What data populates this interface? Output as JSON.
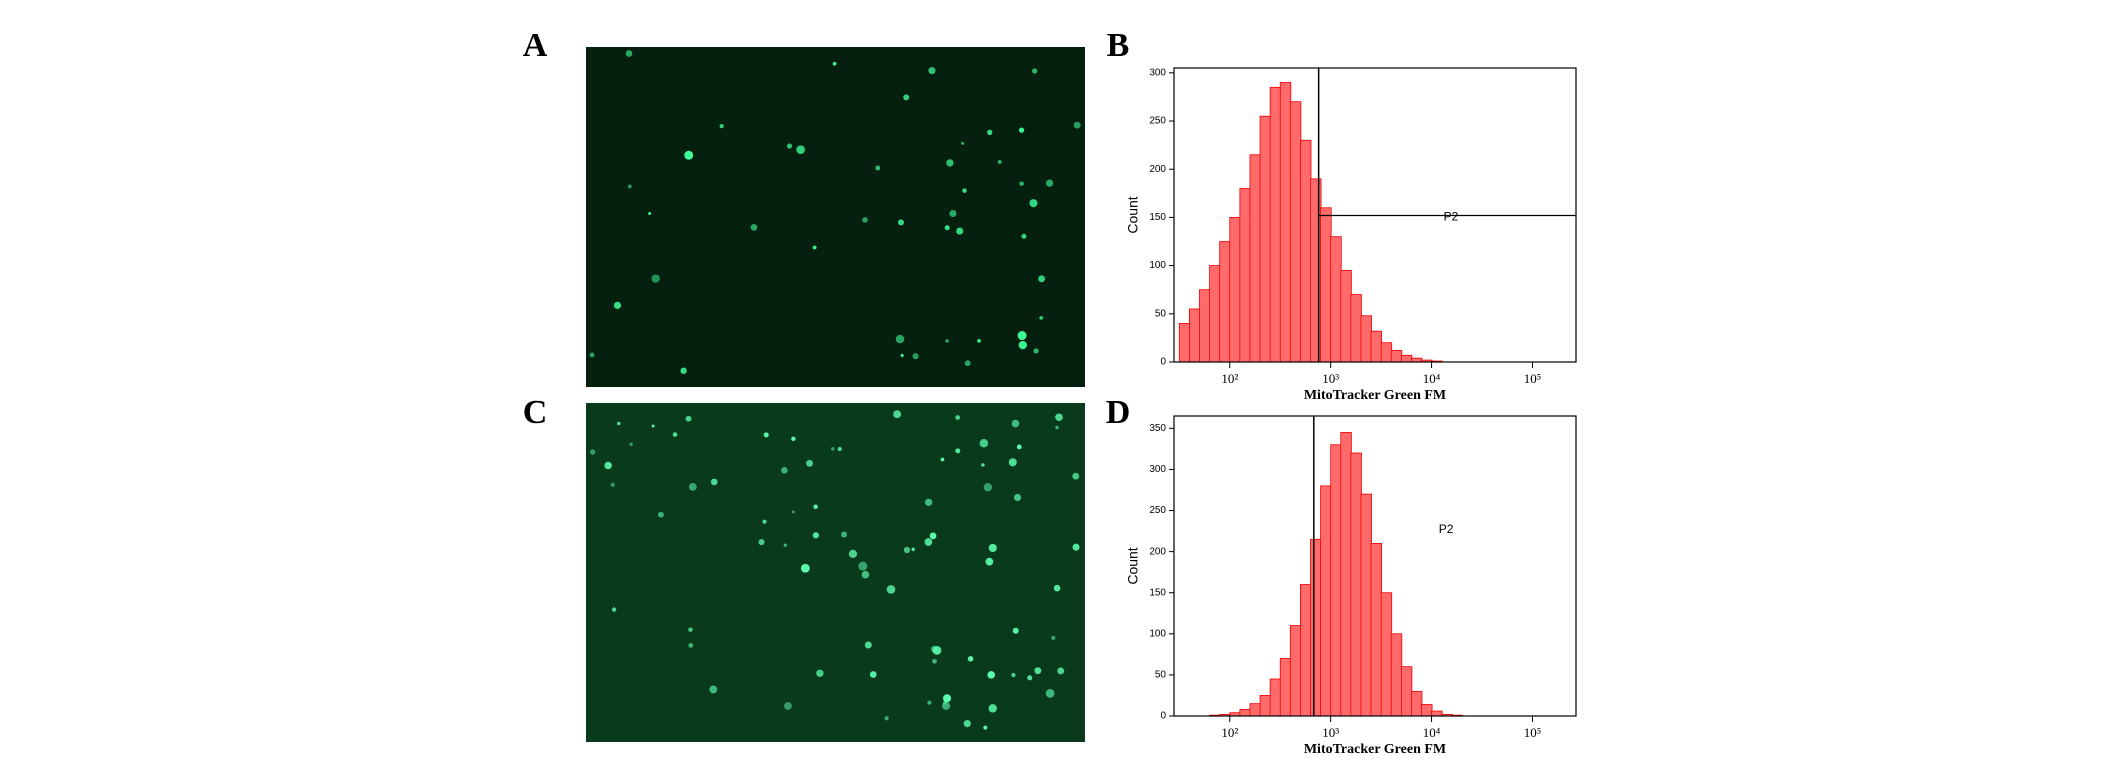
{
  "panel_labels": [
    "A",
    "B",
    "C",
    "D"
  ],
  "chart_data": [
    {
      "type": "histogram",
      "xlabel": "MitoTracker Green FM",
      "ylabel": "Count",
      "color": "#ff6b6b",
      "log_x": true,
      "xlim": [
        28,
        270000
      ],
      "ylim": [
        0,
        305
      ],
      "xticks": [
        {
          "value": 100,
          "label": "10²"
        },
        {
          "value": 1000,
          "label": "10³"
        },
        {
          "value": 10000,
          "label": "10⁴"
        },
        {
          "value": 100000,
          "label": "10⁵"
        }
      ],
      "yticks": [
        0,
        50,
        100,
        150,
        200,
        250,
        300
      ],
      "bins": [
        31.6,
        39.8,
        50.1,
        63.1,
        79.4,
        100,
        125.9,
        158.5,
        199.5,
        251.2,
        316.2,
        398.1,
        501.2,
        631,
        794.3,
        1000,
        1259,
        1585,
        1995,
        2512,
        3162,
        3981,
        5012,
        6310,
        7943,
        10000,
        12589,
        15849,
        19953,
        25119,
        31623
      ],
      "counts": [
        40,
        55,
        75,
        100,
        125,
        150,
        180,
        215,
        255,
        285,
        290,
        270,
        230,
        190,
        160,
        130,
        95,
        70,
        48,
        32,
        20,
        12,
        7,
        4,
        2,
        1,
        0,
        0,
        0,
        0
      ],
      "gate": {
        "label": "P2",
        "x": 760,
        "y": 152
      }
    },
    {
      "type": "histogram",
      "xlabel": "MitoTracker Green FM",
      "ylabel": "Count",
      "color": "#ff6b6b",
      "log_x": true,
      "xlim": [
        28,
        270000
      ],
      "ylim": [
        0,
        365
      ],
      "xticks": [
        {
          "value": 100,
          "label": "10²"
        },
        {
          "value": 1000,
          "label": "10³"
        },
        {
          "value": 10000,
          "label": "10⁴"
        },
        {
          "value": 100000,
          "label": "10⁵"
        }
      ],
      "yticks": [
        0,
        50,
        100,
        150,
        200,
        250,
        300,
        350
      ],
      "bins": [
        31.6,
        39.8,
        50.1,
        63.1,
        79.4,
        100,
        125.9,
        158.5,
        199.5,
        251.2,
        316.2,
        398.1,
        501.2,
        631,
        794.3,
        1000,
        1259,
        1585,
        1995,
        2512,
        3162,
        3981,
        5012,
        6310,
        7943,
        10000,
        12589,
        15849,
        19953,
        25119,
        31623
      ],
      "counts": [
        0,
        0,
        0,
        1,
        2,
        4,
        8,
        15,
        25,
        45,
        70,
        110,
        160,
        215,
        280,
        330,
        345,
        320,
        270,
        210,
        150,
        100,
        60,
        30,
        14,
        6,
        2,
        1,
        0,
        0
      ],
      "gate": {
        "label": "P2",
        "x": 680
      }
    }
  ]
}
